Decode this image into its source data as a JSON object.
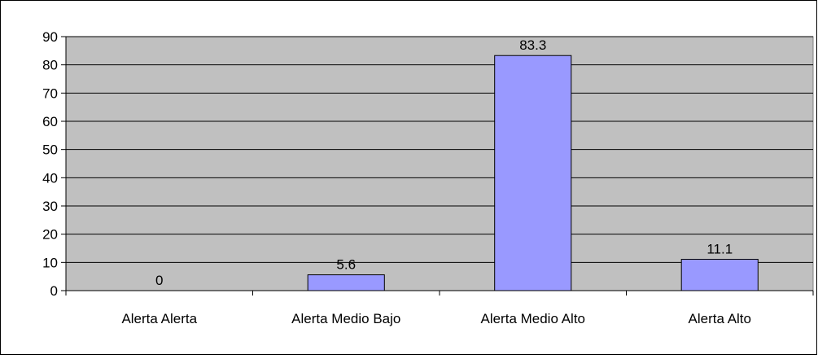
{
  "chart_data": {
    "type": "bar",
    "title": "",
    "xlabel": "",
    "ylabel": "",
    "categories": [
      "Alerta Alerta",
      "Alerta Medio Bajo",
      "Alerta Medio Alto",
      "Alerta Alto"
    ],
    "values": [
      0,
      5.6,
      83.3,
      11.1
    ],
    "data_labels": [
      "0",
      "5.6",
      "83.3",
      "11.1"
    ],
    "ylim": [
      0,
      90
    ],
    "yticks": [
      "0",
      "10",
      "20",
      "30",
      "40",
      "50",
      "60",
      "70",
      "80",
      "90"
    ],
    "grid": true,
    "legend": "none",
    "colors": {
      "plot_background": "#c0c0c0",
      "bar_fill": "#9999ff",
      "bar_stroke": "#000000",
      "gridline": "#000000"
    }
  }
}
